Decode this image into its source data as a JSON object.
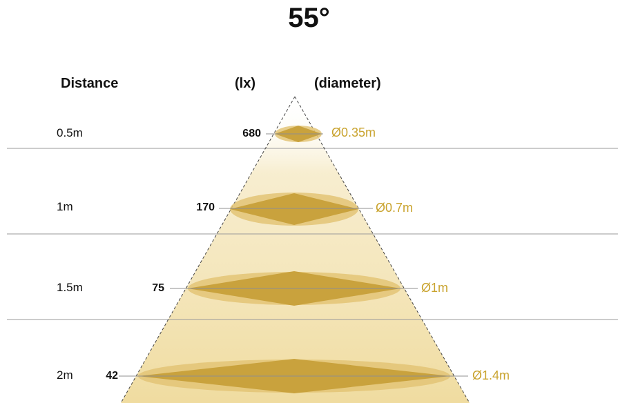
{
  "title": "55°",
  "headers": {
    "distance": "Distance",
    "lux": "(lx)",
    "diameter": "(diameter)"
  },
  "colors": {
    "ellipse": "#e3c476",
    "diamond": "#c9a23d",
    "label": "#c9a32e",
    "line": "#8f8f8f",
    "glow": "#f2dfa6"
  },
  "rows": [
    {
      "distance": "0.5m",
      "lux": "680",
      "diameter": "Ø0.35m"
    },
    {
      "distance": "1m",
      "lux": "170",
      "diameter": "Ø0.7m"
    },
    {
      "distance": "1.5m",
      "lux": "75",
      "diameter": "Ø1m"
    },
    {
      "distance": "2m",
      "lux": "42",
      "diameter": "Ø1.4m"
    }
  ]
}
